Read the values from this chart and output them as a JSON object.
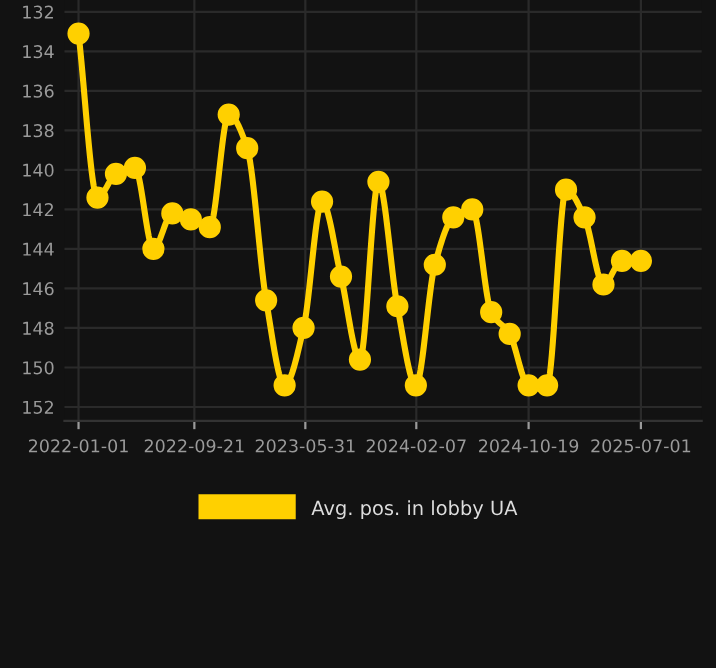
{
  "chart_data": {
    "type": "line",
    "x": [
      "2022-01-01",
      "2022-02-13",
      "2022-03-27",
      "2022-05-09",
      "2022-06-20",
      "2022-08-02",
      "2022-09-13",
      "2022-10-26",
      "2022-12-08",
      "2023-01-19",
      "2023-03-03",
      "2023-04-14",
      "2023-05-27",
      "2023-07-08",
      "2023-08-20",
      "2023-10-02",
      "2023-11-13",
      "2023-12-26",
      "2024-02-06",
      "2024-03-20",
      "2024-05-01",
      "2024-06-13",
      "2024-07-26",
      "2024-09-06",
      "2024-10-19",
      "2024-11-30",
      "2025-01-12",
      "2025-02-23",
      "2025-04-07",
      "2025-05-19",
      "2025-07-01"
    ],
    "series": [
      {
        "name": "Avg. pos. in lobby UA",
        "color": "#ffd000",
        "values": [
          133.1,
          141.4,
          140.2,
          139.9,
          144.0,
          142.2,
          142.5,
          142.9,
          137.2,
          138.9,
          146.6,
          150.9,
          148.0,
          141.6,
          145.4,
          149.6,
          140.6,
          146.9,
          150.9,
          144.8,
          142.4,
          142.0,
          147.2,
          148.3,
          150.9,
          150.9,
          141.0,
          142.4,
          145.8,
          144.6,
          144.6
        ]
      }
    ],
    "xlim": [
      "2021-11-30",
      "2025-11-16"
    ],
    "xticks": [
      "2022-01-01",
      "2022-09-21",
      "2023-05-31",
      "2024-02-07",
      "2024-10-19",
      "2025-07-01"
    ],
    "ylim": [
      152.7,
      131.4
    ],
    "yticks": [
      132,
      134,
      136,
      138,
      140,
      142,
      144,
      146,
      148,
      150,
      152
    ],
    "grid": true,
    "legend": "bottom",
    "marker": "circle",
    "line_style": "solid"
  }
}
